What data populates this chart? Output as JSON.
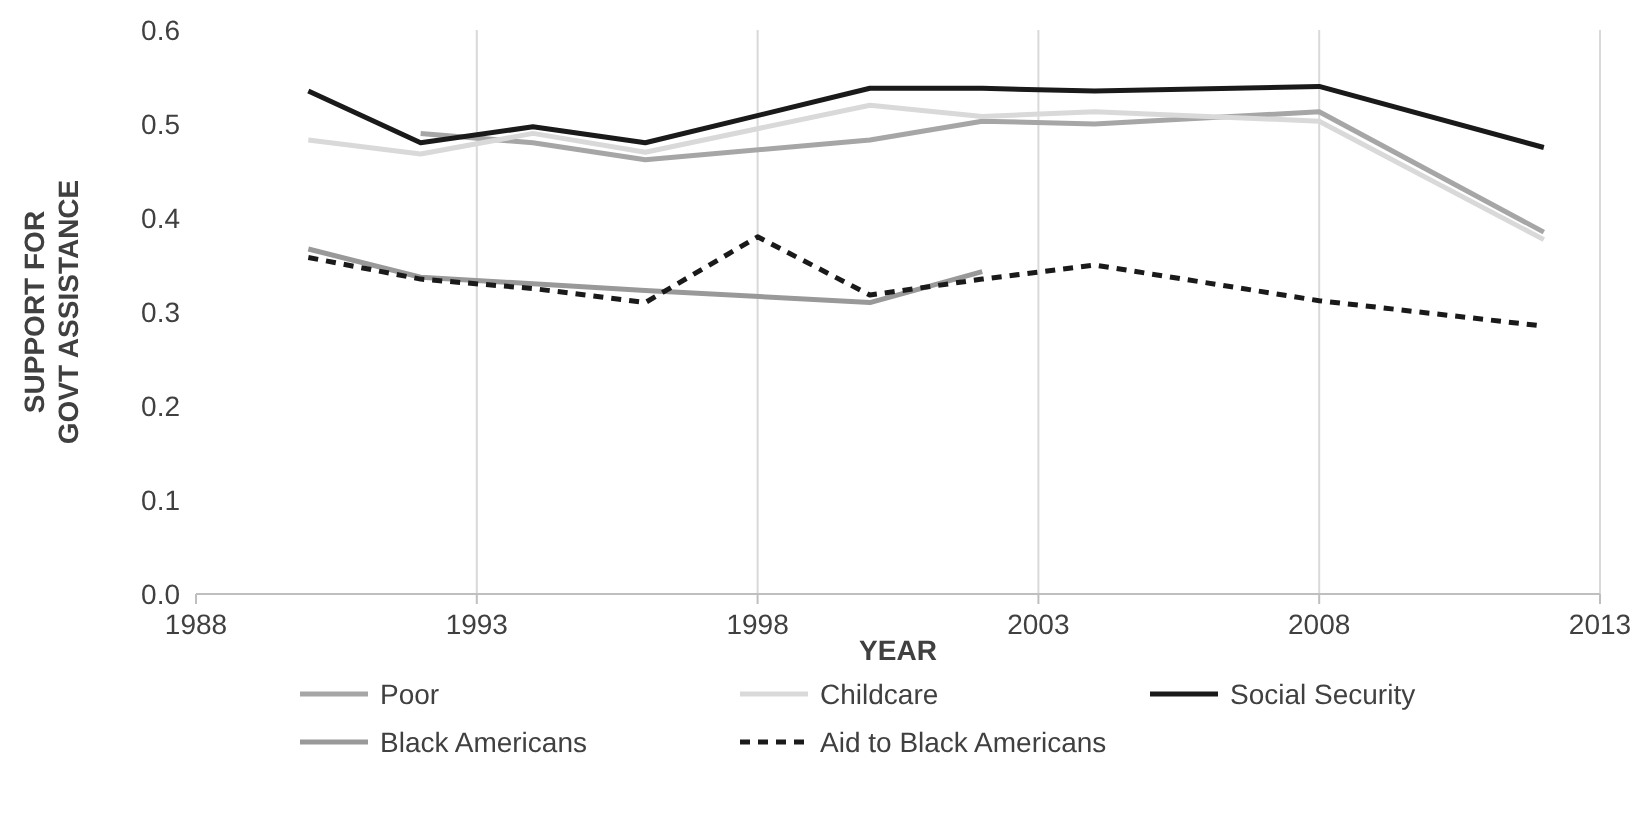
{
  "chart_data": {
    "type": "line",
    "xlabel": "YEAR",
    "ylabel": "SUPPORT FOR GOVT ASSISTANCE",
    "xlim": [
      1988,
      2013
    ],
    "xticks": [
      1988,
      1993,
      1998,
      2003,
      2008,
      2013
    ],
    "ylim": [
      0,
      0.6
    ],
    "yticks": [
      {
        "value": 0,
        "label": "0.0"
      },
      {
        "value": 0.1,
        "label": "0.1"
      },
      {
        "value": 0.2,
        "label": "0.2"
      },
      {
        "value": 0.3,
        "label": "0.3"
      },
      {
        "value": 0.4,
        "label": "0.4"
      },
      {
        "value": 0.5,
        "label": "0.5"
      },
      {
        "value": 0.6,
        "label": "0.6"
      }
    ],
    "grid": "x",
    "legend": "bottom",
    "marker": "none",
    "series": [
      {
        "name": "Poor",
        "color": "#a6a6a6",
        "x": [
          1992,
          1994,
          1996,
          2000,
          2002,
          2004,
          2008,
          2012
        ],
        "values": [
          0.49,
          0.48,
          0.462,
          0.483,
          0.503,
          0.5,
          0.513,
          0.385
        ]
      },
      {
        "name": "Childcare",
        "color": "#d9d9d9",
        "x": [
          1990,
          1992,
          1994,
          1996,
          2000,
          2002,
          2004,
          2008,
          2012
        ],
        "values": [
          0.483,
          0.468,
          0.49,
          0.47,
          0.52,
          0.508,
          0.513,
          0.503,
          0.377
        ]
      },
      {
        "name": "Social Security",
        "color": "#1a1a1a",
        "x": [
          1990,
          1992,
          1994,
          1996,
          2000,
          2002,
          2004,
          2008,
          2012
        ],
        "values": [
          0.535,
          0.48,
          0.497,
          0.48,
          0.538,
          0.538,
          0.535,
          0.54,
          0.475
        ]
      },
      {
        "name": "Black Americans",
        "color": "#999999",
        "x": [
          1990,
          1992,
          1996,
          2000,
          2002
        ],
        "values": [
          0.367,
          0.337,
          0.323,
          0.31,
          0.343
        ]
      },
      {
        "name": "Aid to Black Americans",
        "color": "#1a1a1a",
        "line_style": "dashed",
        "x": [
          1990,
          1992,
          1994,
          1996,
          1998,
          2000,
          2002,
          2004,
          2008,
          2012
        ],
        "values": [
          0.358,
          0.335,
          0.325,
          0.31,
          0.38,
          0.318,
          0.335,
          0.35,
          0.312,
          0.285
        ]
      }
    ]
  }
}
